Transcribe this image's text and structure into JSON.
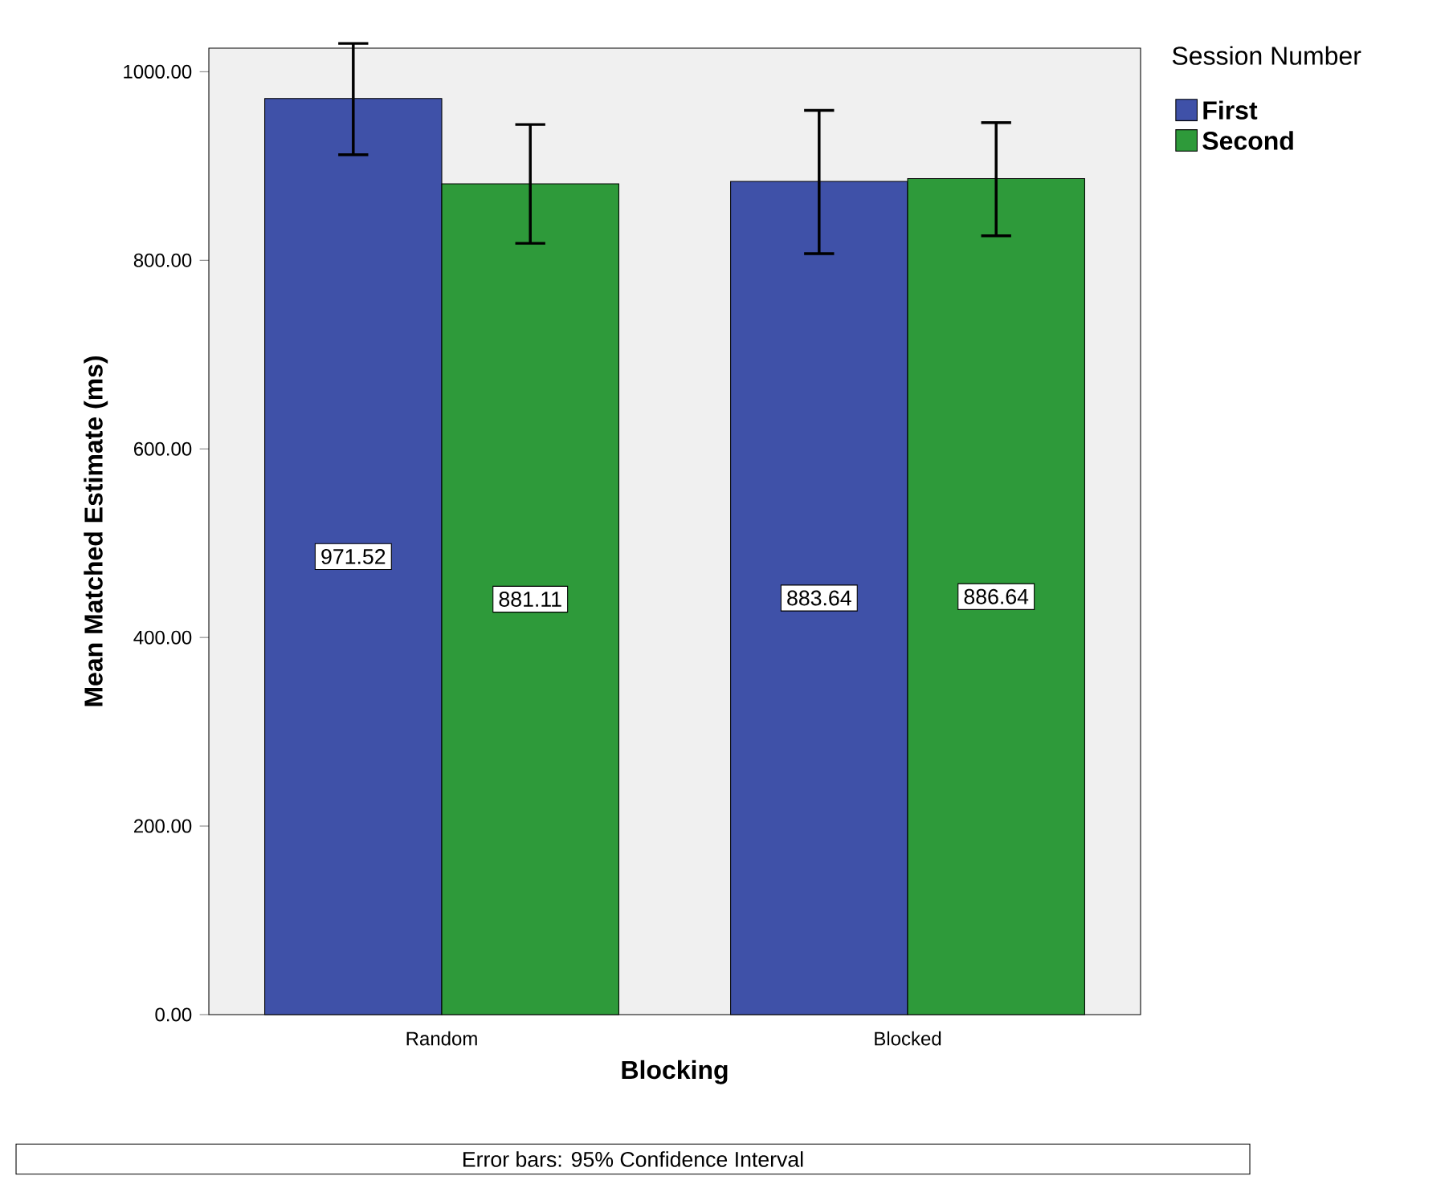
{
  "chart_data": {
    "type": "bar",
    "xlabel": "Blocking",
    "ylabel": "Mean Matched Estimate (ms)",
    "legend_title": "Session Number",
    "categories": [
      "Random",
      "Blocked"
    ],
    "series": [
      {
        "name": "First",
        "color": "#3f51a8",
        "values": [
          971.52,
          883.64
        ],
        "errors": [
          [
            912,
            1030
          ],
          [
            807,
            959
          ]
        ]
      },
      {
        "name": "Second",
        "color": "#2e9a3a",
        "values": [
          881.11,
          886.64
        ],
        "errors": [
          [
            818,
            944
          ],
          [
            826,
            946
          ]
        ]
      }
    ],
    "ylim": [
      0,
      1025
    ],
    "yticks": [
      {
        "value": 0,
        "label": "0.00"
      },
      {
        "value": 200,
        "label": "200.00"
      },
      {
        "value": 400,
        "label": "400.00"
      },
      {
        "value": 600,
        "label": "600.00"
      },
      {
        "value": 800,
        "label": "800.00"
      },
      {
        "value": 1000,
        "label": "1000.00"
      }
    ],
    "data_labels": true,
    "legend": "top right",
    "grid": false,
    "annotations": [
      "Error bars: 95% Confidence Interval"
    ]
  }
}
